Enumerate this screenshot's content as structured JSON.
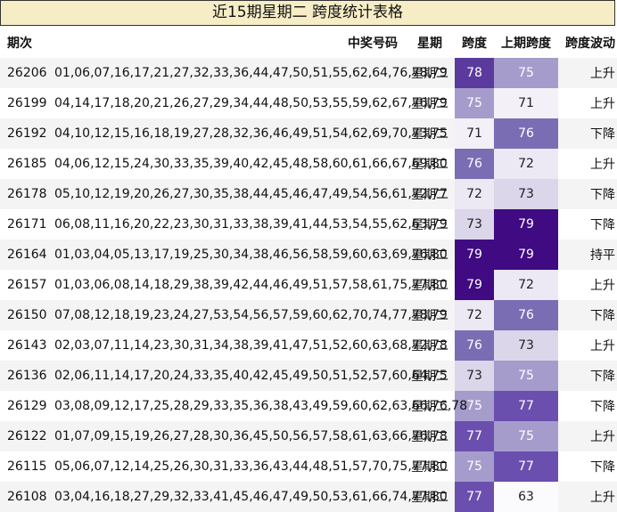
{
  "title": "近15期星期二 跨度统计表格",
  "headers": {
    "issue": "期次",
    "numbers": "中奖号码",
    "weekday": "星期",
    "span": "跨度",
    "prev_span": "上期跨度",
    "wave": "跨度波动"
  },
  "rows": [
    {
      "issue": "26206",
      "numbers": "01,06,07,16,17,21,27,32,33,36,44,47,50,51,55,62,64,76,78,79",
      "weekday": "星期二",
      "span": "78",
      "prev_span": "75",
      "wave": "上升"
    },
    {
      "issue": "26199",
      "numbers": "04,14,17,18,20,21,26,27,29,34,44,48,50,53,55,59,62,67,76,79",
      "weekday": "星期二",
      "span": "75",
      "prev_span": "71",
      "wave": "上升"
    },
    {
      "issue": "26192",
      "numbers": "04,10,12,15,16,18,19,27,28,32,36,46,49,51,54,62,69,70,73,75",
      "weekday": "星期二",
      "span": "71",
      "prev_span": "76",
      "wave": "下降"
    },
    {
      "issue": "26185",
      "numbers": "04,06,12,15,24,30,33,35,39,40,42,45,48,58,60,61,66,67,69,80",
      "weekday": "星期二",
      "span": "76",
      "prev_span": "72",
      "wave": "上升"
    },
    {
      "issue": "26178",
      "numbers": "05,10,12,19,20,26,27,30,35,38,44,45,46,47,49,54,56,61,72,77",
      "weekday": "星期二",
      "span": "72",
      "prev_span": "73",
      "wave": "下降"
    },
    {
      "issue": "26171",
      "numbers": "06,08,11,16,20,22,23,30,31,33,38,39,41,44,53,54,55,62,63,79",
      "weekday": "星期二",
      "span": "73",
      "prev_span": "79",
      "wave": "下降"
    },
    {
      "issue": "26164",
      "numbers": "01,03,04,05,13,17,19,25,30,34,38,46,56,58,59,60,63,69,76,80",
      "weekday": "星期二",
      "span": "79",
      "prev_span": "79",
      "wave": "持平"
    },
    {
      "issue": "26157",
      "numbers": "01,03,06,08,14,18,29,38,39,42,44,46,49,51,57,58,61,75,77,80",
      "weekday": "星期二",
      "span": "79",
      "prev_span": "72",
      "wave": "上升"
    },
    {
      "issue": "26150",
      "numbers": "07,08,12,18,19,23,24,27,53,54,56,57,59,60,62,70,74,77,78,79",
      "weekday": "星期二",
      "span": "72",
      "prev_span": "76",
      "wave": "下降"
    },
    {
      "issue": "26143",
      "numbers": "02,03,07,11,14,23,30,31,34,38,39,41,47,51,52,60,63,68,72,78",
      "weekday": "星期二",
      "span": "76",
      "prev_span": "73",
      "wave": "上升"
    },
    {
      "issue": "26136",
      "numbers": "02,06,11,14,17,20,24,33,35,40,42,45,49,50,51,52,57,60,64,75",
      "weekday": "星期二",
      "span": "73",
      "prev_span": "75",
      "wave": "下降"
    },
    {
      "issue": "26129",
      "numbers": "03,08,09,12,17,25,28,29,33,35,36,38,43,49,59,60,62,63,66,76,78",
      "weekday": "星期二",
      "span": "75",
      "prev_span": "77",
      "wave": "下降"
    },
    {
      "issue": "26122",
      "numbers": "01,07,09,15,19,26,27,28,30,36,45,50,56,57,58,61,63,66,76,78",
      "weekday": "星期二",
      "span": "77",
      "prev_span": "75",
      "wave": "上升"
    },
    {
      "issue": "26115",
      "numbers": "05,06,07,12,14,25,26,30,31,33,36,43,44,48,51,57,70,75,77,80",
      "weekday": "星期二",
      "span": "75",
      "prev_span": "77",
      "wave": "下降"
    },
    {
      "issue": "26108",
      "numbers": "03,04,16,18,27,29,32,33,41,45,46,47,49,50,53,61,66,74,77,80",
      "weekday": "星期二",
      "span": "77",
      "prev_span": "63",
      "wave": "上升"
    }
  ],
  "colors": {
    "title_bg": "#f6edc6",
    "heat_scale": {
      "63": "#fbfafd",
      "71": "#f3f0f8",
      "72": "#ece8f4",
      "73": "#dcd6ea",
      "75": "#a59ccc",
      "76": "#7b6db4",
      "77": "#6a4fae",
      "78": "#5a3a9c",
      "79": "#3f0a82"
    }
  }
}
